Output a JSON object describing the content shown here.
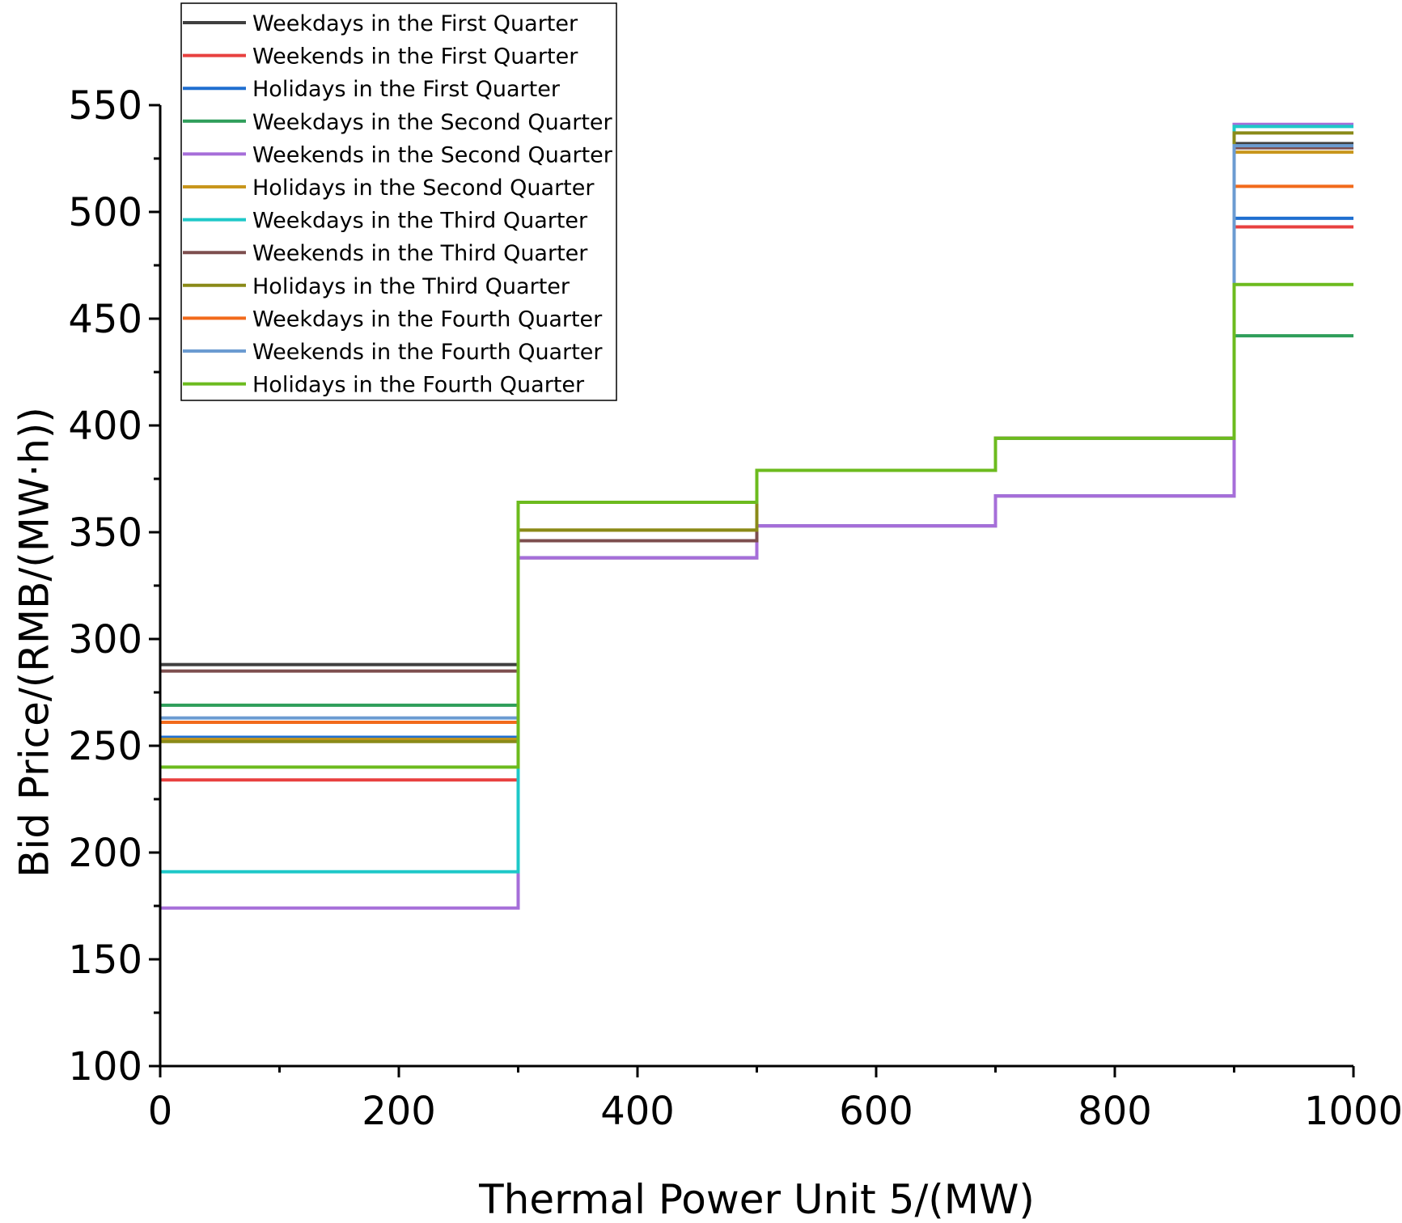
{
  "chart_data": {
    "type": "line",
    "step": true,
    "title": "",
    "xlabel": "Thermal Power Unit 5/(MW)",
    "ylabel": "Bid Price/(RMB/(MW·h))",
    "xlim": [
      0,
      1000
    ],
    "ylim": [
      100,
      550
    ],
    "xticks": [
      0,
      200,
      400,
      600,
      800,
      1000
    ],
    "yticks": [
      100,
      150,
      200,
      250,
      300,
      350,
      400,
      450,
      500,
      550
    ],
    "xtick_labels": [
      "0",
      "200",
      "400",
      "600",
      "800",
      "1000"
    ],
    "ytick_labels": [
      "100",
      "150",
      "200",
      "250",
      "300",
      "350",
      "400",
      "450",
      "500",
      "550"
    ],
    "grid": false,
    "legend_position": "top-left",
    "x_breakpoints": [
      0,
      300,
      500,
      700,
      900,
      1000
    ],
    "series": [
      {
        "name": "Weekdays in the First Quarter",
        "color": "#3f3f3f",
        "values": [
          288,
          364,
          379,
          394,
          532
        ]
      },
      {
        "name": "Weekends in the First Quarter",
        "color": "#e8403f",
        "values": [
          234,
          338,
          353,
          367,
          493
        ]
      },
      {
        "name": "Holidays in the First Quarter",
        "color": "#1f6fd0",
        "values": [
          254,
          338,
          353,
          367,
          497
        ]
      },
      {
        "name": "Weekdays in the Second Quarter",
        "color": "#2e9e5a",
        "values": [
          269,
          364,
          379,
          394,
          442
        ]
      },
      {
        "name": "Weekends in the Second Quarter",
        "color": "#a66ed9",
        "values": [
          174,
          338,
          353,
          367,
          541
        ]
      },
      {
        "name": "Holidays in the Second Quarter",
        "color": "#c8961c",
        "values": [
          253,
          351,
          379,
          394,
          528
        ]
      },
      {
        "name": "Weekdays in the Third Quarter",
        "color": "#1ec8c8",
        "values": [
          191,
          364,
          379,
          394,
          540
        ]
      },
      {
        "name": "Weekends in the Third Quarter",
        "color": "#7d4e4e",
        "values": [
          285,
          346,
          379,
          394,
          530
        ]
      },
      {
        "name": "Holidays in the Third Quarter",
        "color": "#8a8a18",
        "values": [
          252,
          351,
          379,
          394,
          537
        ]
      },
      {
        "name": "Weekdays in the Fourth Quarter",
        "color": "#f26a1b",
        "values": [
          261,
          364,
          379,
          394,
          512
        ]
      },
      {
        "name": "Weekends in the Fourth Quarter",
        "color": "#6b9bd1",
        "values": [
          263,
          364,
          379,
          394,
          531
        ]
      },
      {
        "name": "Holidays in the Fourth Quarter",
        "color": "#6cbb1e",
        "values": [
          240,
          364,
          379,
          394,
          466
        ]
      }
    ]
  }
}
